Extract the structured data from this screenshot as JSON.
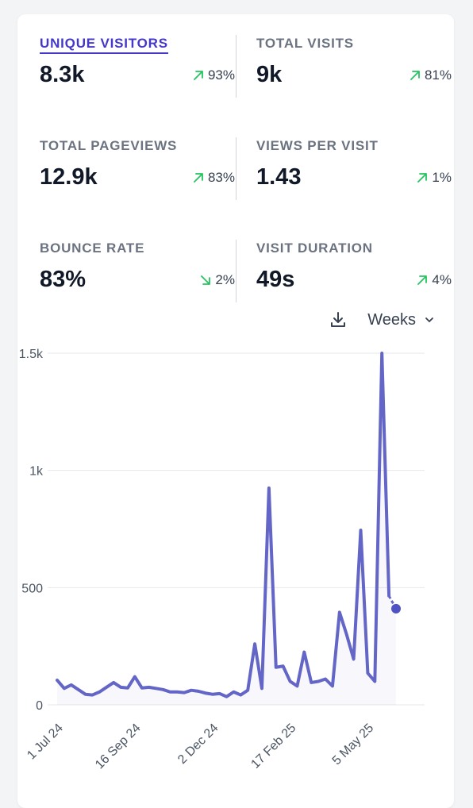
{
  "stats": [
    {
      "label": "UNIQUE VISITORS",
      "value": "8.3k",
      "change": "93%",
      "direction": "up",
      "active": true
    },
    {
      "label": "TOTAL VISITS",
      "value": "9k",
      "change": "81%",
      "direction": "up"
    },
    {
      "label": "TOTAL PAGEVIEWS",
      "value": "12.9k",
      "change": "83%",
      "direction": "up"
    },
    {
      "label": "VIEWS PER VISIT",
      "value": "1.43",
      "change": "1%",
      "direction": "up"
    },
    {
      "label": "BOUNCE RATE",
      "value": "83%",
      "change": "2%",
      "direction": "down"
    },
    {
      "label": "VISIT DURATION",
      "value": "49s",
      "change": "4%",
      "direction": "up"
    }
  ],
  "controls": {
    "download_icon": "download-icon",
    "interval": "Weeks",
    "interval_icon": "chevron-down-icon"
  },
  "colors": {
    "accent": "#4338ca",
    "line": "#6366c6",
    "positive": "#22c55e"
  },
  "chart_data": {
    "type": "line",
    "series": [
      {
        "values": [
          105,
          70,
          85,
          65,
          45,
          42,
          55,
          75,
          95,
          75,
          72,
          120,
          72,
          75,
          70,
          65,
          55,
          55,
          52,
          62,
          58,
          50,
          45,
          48,
          35,
          55,
          42,
          62,
          260,
          70,
          925,
          160,
          165,
          100,
          80,
          225,
          95,
          100,
          110,
          80,
          395,
          300,
          195,
          745,
          135,
          100,
          1500,
          465,
          410
        ],
        "last_point_partial": true
      }
    ],
    "x_tick_labels": [
      "1 Jul 24",
      "16 Sep 24",
      "2 Dec 24",
      "17 Feb 25",
      "5 May 25"
    ],
    "x_tick_indices": [
      0,
      11,
      22,
      33,
      44
    ],
    "y_ticks": [
      0,
      500,
      1000,
      1500
    ],
    "y_tick_labels": [
      "0",
      "500",
      "1k",
      "1.5k"
    ],
    "ylim": [
      0,
      1500
    ],
    "grid": true
  }
}
